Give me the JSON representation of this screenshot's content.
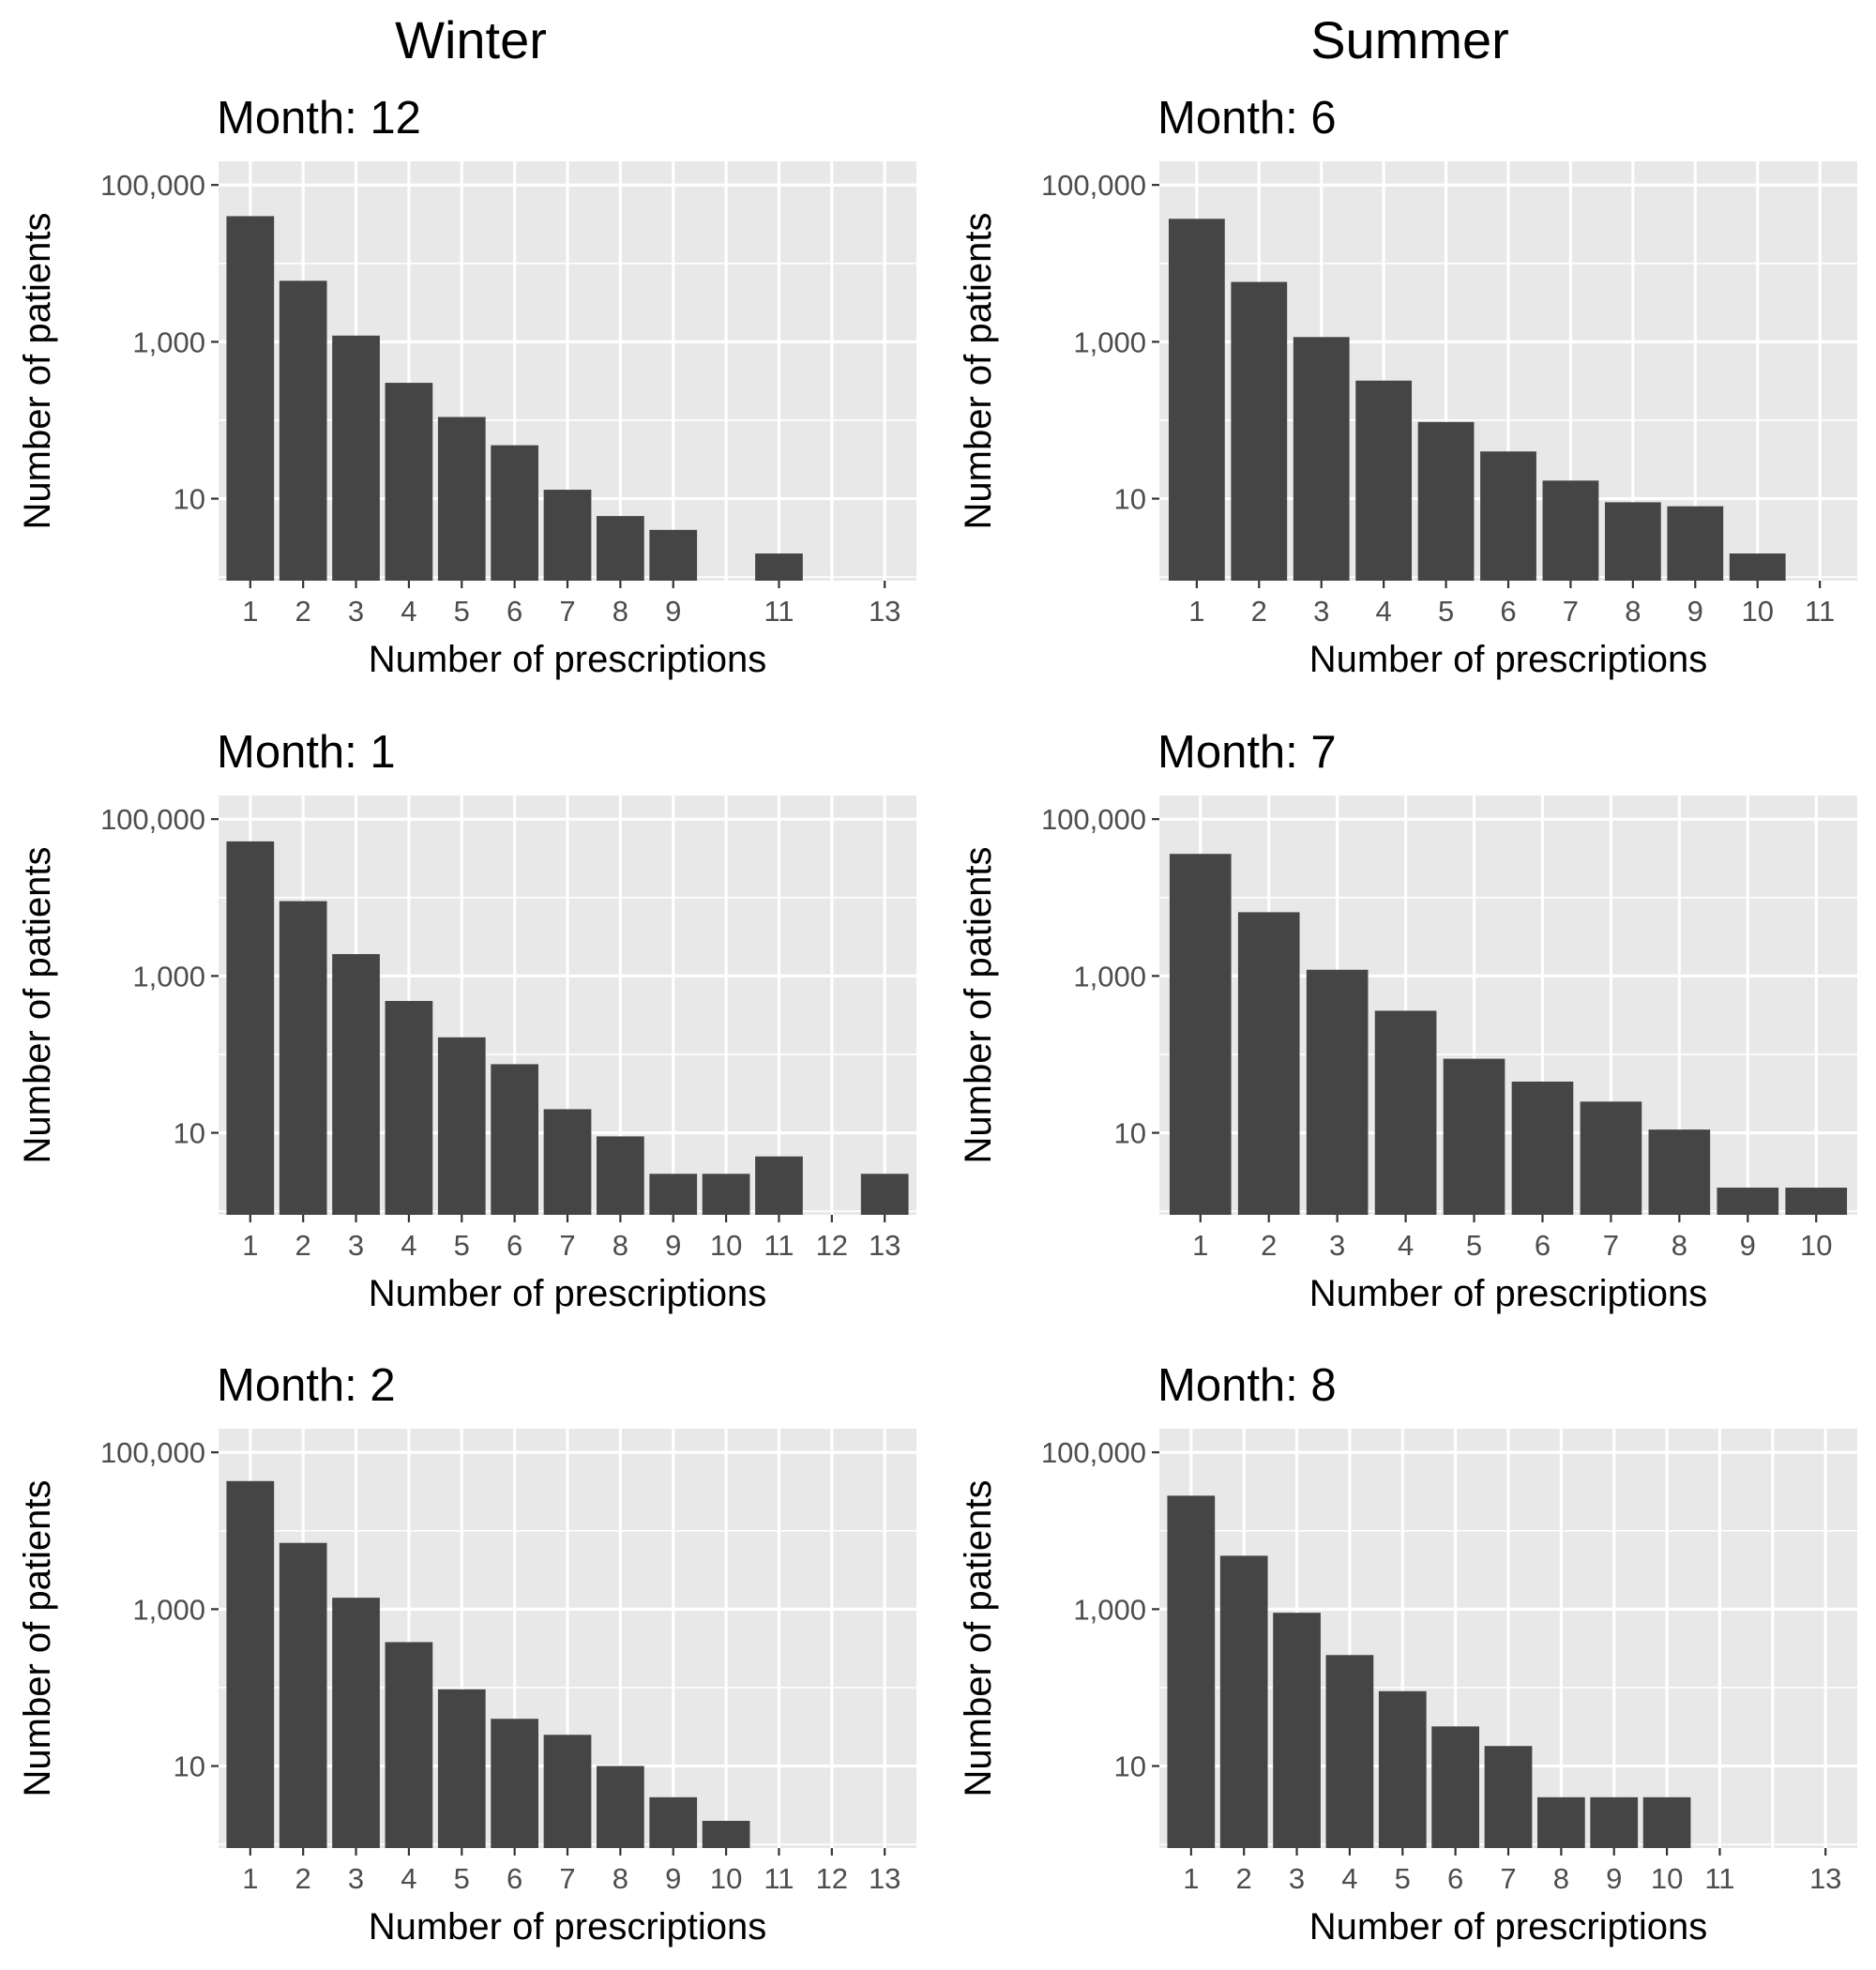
{
  "column_titles": [
    "Winter",
    "Summer"
  ],
  "colors": {
    "panel_background": "#e8e8e8",
    "bar": "#454545",
    "grid": "#ffffff"
  },
  "chart_data": [
    {
      "type": "bar",
      "column": "Winter",
      "title": "Month: 12",
      "xlabel": "Number of prescriptions",
      "ylabel": "Number of patients",
      "y_scale": "log10",
      "ylim": [
        0.9,
        200000
      ],
      "y_ticks": [
        10,
        1000,
        100000
      ],
      "y_tick_labels": [
        "10",
        "1,000",
        "100,000"
      ],
      "x_ticks": [
        "1",
        "2",
        "3",
        "4",
        "5",
        "6",
        "7",
        "8",
        "9",
        "11",
        "13"
      ],
      "categories": [
        "1",
        "2",
        "3",
        "4",
        "5",
        "6",
        "7",
        "8",
        "9",
        "11"
      ],
      "values": [
        40000,
        6000,
        1200,
        300,
        110,
        48,
        13,
        6,
        4,
        2
      ]
    },
    {
      "type": "bar",
      "column": "Summer",
      "title": "Month: 6",
      "xlabel": "Number of prescriptions",
      "ylabel": "Number of patients",
      "y_scale": "log10",
      "ylim": [
        0.9,
        200000
      ],
      "y_ticks": [
        10,
        1000,
        100000
      ],
      "y_tick_labels": [
        "10",
        "1,000",
        "100,000"
      ],
      "x_ticks": [
        "1",
        "2",
        "3",
        "4",
        "5",
        "6",
        "7",
        "8",
        "9",
        "10",
        "11"
      ],
      "categories": [
        "1",
        "2",
        "3",
        "4",
        "5",
        "6",
        "7",
        "8",
        "9",
        "10"
      ],
      "values": [
        37000,
        5800,
        1150,
        320,
        95,
        40,
        17,
        9,
        8,
        2
      ]
    },
    {
      "type": "bar",
      "column": "Winter",
      "title": "Month: 1",
      "xlabel": "Number of prescriptions",
      "ylabel": "Number of patients",
      "y_scale": "log10",
      "ylim": [
        0.9,
        200000
      ],
      "y_ticks": [
        10,
        1000,
        100000
      ],
      "y_tick_labels": [
        "10",
        "1,000",
        "100,000"
      ],
      "x_ticks": [
        "1",
        "2",
        "3",
        "4",
        "5",
        "6",
        "7",
        "8",
        "9",
        "10",
        "11",
        "12",
        "13"
      ],
      "categories": [
        "1",
        "2",
        "3",
        "4",
        "5",
        "6",
        "7",
        "8",
        "9",
        "10",
        "11",
        "12",
        "13"
      ],
      "values": [
        52000,
        9000,
        1900,
        480,
        165,
        75,
        20,
        9,
        3,
        3,
        5,
        null,
        3
      ]
    },
    {
      "type": "bar",
      "column": "Summer",
      "title": "Month: 7",
      "xlabel": "Number of prescriptions",
      "ylabel": "Number of patients",
      "y_scale": "log10",
      "ylim": [
        0.9,
        200000
      ],
      "y_ticks": [
        10,
        1000,
        100000
      ],
      "y_tick_labels": [
        "10",
        "1,000",
        "100,000"
      ],
      "x_ticks": [
        "1",
        "2",
        "3",
        "4",
        "5",
        "6",
        "7",
        "8",
        "9",
        "10"
      ],
      "categories": [
        "1",
        "2",
        "3",
        "4",
        "5",
        "6",
        "7",
        "8",
        "9",
        "10"
      ],
      "values": [
        36000,
        6500,
        1200,
        360,
        88,
        45,
        25,
        11,
        2,
        2
      ]
    },
    {
      "type": "bar",
      "column": "Winter",
      "title": "Month: 2",
      "xlabel": "Number of prescriptions",
      "ylabel": "Number of patients",
      "y_scale": "log10",
      "ylim": [
        0.9,
        200000
      ],
      "y_ticks": [
        10,
        1000,
        100000
      ],
      "y_tick_labels": [
        "10",
        "1,000",
        "100,000"
      ],
      "x_ticks": [
        "1",
        "2",
        "3",
        "4",
        "5",
        "6",
        "7",
        "8",
        "9",
        "10",
        "11",
        "12",
        "13"
      ],
      "categories": [
        "1",
        "2",
        "3",
        "4",
        "5",
        "6",
        "7",
        "8",
        "9",
        "10",
        "11",
        "12",
        "13"
      ],
      "values": [
        43000,
        7000,
        1400,
        380,
        95,
        40,
        25,
        10,
        4,
        2,
        null,
        null,
        null
      ]
    },
    {
      "type": "bar",
      "column": "Summer",
      "title": "Month: 8",
      "xlabel": "Number of prescriptions",
      "ylabel": "Number of patients",
      "y_scale": "log10",
      "ylim": [
        0.9,
        200000
      ],
      "y_ticks": [
        10,
        1000,
        100000
      ],
      "y_tick_labels": [
        "10",
        "1,000",
        "100,000"
      ],
      "x_ticks": [
        "1",
        "2",
        "3",
        "4",
        "5",
        "6",
        "7",
        "8",
        "9",
        "10",
        "11",
        "13"
      ],
      "categories": [
        "1",
        "2",
        "3",
        "4",
        "5",
        "6",
        "7",
        "8",
        "9",
        "10"
      ],
      "values": [
        28000,
        4800,
        900,
        260,
        90,
        32,
        18,
        4,
        4,
        4
      ]
    }
  ]
}
